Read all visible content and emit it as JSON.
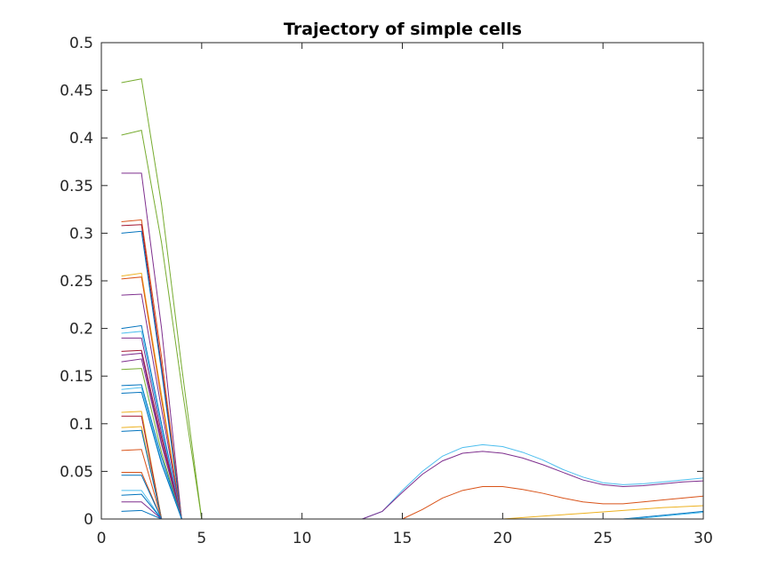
{
  "chart_data": {
    "type": "line",
    "title": "Trajectory of simple cells",
    "xlabel": "",
    "ylabel": "",
    "xlim": [
      0,
      30
    ],
    "ylim": [
      0,
      0.5
    ],
    "x_ticks": [
      0,
      5,
      10,
      15,
      20,
      25,
      30
    ],
    "x_tick_labels": [
      "0",
      "5",
      "10",
      "15",
      "20",
      "25",
      "30"
    ],
    "y_ticks": [
      0,
      0.05,
      0.1,
      0.15,
      0.2,
      0.25,
      0.3,
      0.35,
      0.4,
      0.45,
      0.5
    ],
    "y_tick_labels": [
      "0",
      "0.05",
      "0.1",
      "0.15",
      "0.2",
      "0.25",
      "0.3",
      "0.35",
      "0.4",
      "0.45",
      "0.5"
    ],
    "grid": false,
    "legend": "none",
    "series": [
      {
        "color": "#77AC30",
        "x": [
          1,
          2,
          3,
          4,
          5
        ],
        "y": [
          0.458,
          0.462,
          0.33,
          0.16,
          0
        ]
      },
      {
        "color": "#77AC30",
        "x": [
          1,
          2,
          3,
          4,
          5
        ],
        "y": [
          0.403,
          0.408,
          0.29,
          0.14,
          0
        ]
      },
      {
        "color": "#7E2F8E",
        "x": [
          1,
          2,
          3,
          4
        ],
        "y": [
          0.363,
          0.363,
          0.2,
          0
        ]
      },
      {
        "color": "#D95319",
        "x": [
          1,
          2,
          3,
          4
        ],
        "y": [
          0.312,
          0.314,
          0.17,
          0
        ]
      },
      {
        "color": "#A2142F",
        "x": [
          1,
          2,
          3,
          4
        ],
        "y": [
          0.308,
          0.309,
          0.16,
          0
        ]
      },
      {
        "color": "#0072BD",
        "x": [
          1,
          2,
          3,
          4
        ],
        "y": [
          0.3,
          0.302,
          0.155,
          0
        ]
      },
      {
        "color": "#EDB120",
        "x": [
          1,
          2,
          3,
          4
        ],
        "y": [
          0.255,
          0.258,
          0.13,
          0
        ]
      },
      {
        "color": "#D95319",
        "x": [
          1,
          2,
          3,
          4
        ],
        "y": [
          0.252,
          0.254,
          0.125,
          0
        ]
      },
      {
        "color": "#7E2F8E",
        "x": [
          1,
          2,
          3,
          4
        ],
        "y": [
          0.235,
          0.236,
          0.115,
          0
        ]
      },
      {
        "color": "#0072BD",
        "x": [
          1,
          2,
          3,
          4
        ],
        "y": [
          0.2,
          0.203,
          0.1,
          0
        ]
      },
      {
        "color": "#4DBEEE",
        "x": [
          1,
          2,
          3,
          4
        ],
        "y": [
          0.195,
          0.197,
          0.095,
          0
        ]
      },
      {
        "color": "#7E2F8E",
        "x": [
          1,
          2,
          3,
          4
        ],
        "y": [
          0.19,
          0.19,
          0.09,
          0
        ]
      },
      {
        "color": "#A2142F",
        "x": [
          1,
          2,
          3,
          4
        ],
        "y": [
          0.176,
          0.177,
          0.085,
          0
        ]
      },
      {
        "color": "#7E2F8E",
        "x": [
          1,
          2,
          3,
          4
        ],
        "y": [
          0.172,
          0.174,
          0.08,
          0
        ]
      },
      {
        "color": "#7E2F8E",
        "x": [
          1,
          2,
          3,
          4
        ],
        "y": [
          0.165,
          0.168,
          0.078,
          0
        ]
      },
      {
        "color": "#77AC30",
        "x": [
          1,
          2,
          3,
          4
        ],
        "y": [
          0.157,
          0.158,
          0.07,
          0
        ]
      },
      {
        "color": "#0072BD",
        "x": [
          1,
          2,
          3,
          4
        ],
        "y": [
          0.14,
          0.141,
          0.065,
          0
        ]
      },
      {
        "color": "#4DBEEE",
        "x": [
          1,
          2,
          3,
          4
        ],
        "y": [
          0.136,
          0.138,
          0.06,
          0
        ]
      },
      {
        "color": "#0072BD",
        "x": [
          1,
          2,
          3,
          4
        ],
        "y": [
          0.132,
          0.133,
          0.058,
          0
        ]
      },
      {
        "color": "#EDB120",
        "x": [
          1,
          2,
          3
        ],
        "y": [
          0.112,
          0.113,
          0
        ]
      },
      {
        "color": "#A2142F",
        "x": [
          1,
          2,
          3
        ],
        "y": [
          0.108,
          0.108,
          0
        ]
      },
      {
        "color": "#EDB120",
        "x": [
          1,
          2,
          3
        ],
        "y": [
          0.096,
          0.097,
          0
        ]
      },
      {
        "color": "#0072BD",
        "x": [
          1,
          2,
          3
        ],
        "y": [
          0.092,
          0.093,
          0
        ]
      },
      {
        "color": "#D95319",
        "x": [
          1,
          2,
          3
        ],
        "y": [
          0.072,
          0.073,
          0
        ]
      },
      {
        "color": "#D95319",
        "x": [
          1,
          2,
          3
        ],
        "y": [
          0.049,
          0.049,
          0
        ]
      },
      {
        "color": "#0072BD",
        "x": [
          1,
          2,
          3
        ],
        "y": [
          0.046,
          0.046,
          0
        ]
      },
      {
        "color": "#4DBEEE",
        "x": [
          1,
          2,
          3
        ],
        "y": [
          0.03,
          0.03,
          0
        ]
      },
      {
        "color": "#0072BD",
        "x": [
          1,
          2,
          3
        ],
        "y": [
          0.025,
          0.026,
          0
        ]
      },
      {
        "color": "#7E2F8E",
        "x": [
          1,
          2,
          3
        ],
        "y": [
          0.018,
          0.018,
          0
        ]
      },
      {
        "color": "#0072BD",
        "x": [
          1,
          2,
          3
        ],
        "y": [
          0.008,
          0.009,
          0
        ]
      },
      {
        "color": "#4DBEEE",
        "x": [
          1,
          2,
          3,
          4,
          5,
          10,
          13,
          14,
          15,
          16,
          17,
          18,
          19,
          20,
          21,
          22,
          23,
          24,
          25,
          26,
          27,
          28,
          29,
          30
        ],
        "y": [
          0,
          0,
          0,
          0,
          0,
          0,
          0,
          0.008,
          0.03,
          0.05,
          0.066,
          0.075,
          0.078,
          0.076,
          0.07,
          0.062,
          0.052,
          0.044,
          0.038,
          0.036,
          0.037,
          0.039,
          0.041,
          0.043
        ]
      },
      {
        "color": "#7E2F8E",
        "x": [
          5,
          10,
          13,
          14,
          15,
          16,
          17,
          18,
          19,
          20,
          21,
          22,
          23,
          24,
          25,
          26,
          27,
          28,
          29,
          30
        ],
        "y": [
          0,
          0,
          0,
          0.008,
          0.028,
          0.047,
          0.061,
          0.069,
          0.071,
          0.069,
          0.064,
          0.057,
          0.049,
          0.041,
          0.036,
          0.034,
          0.035,
          0.037,
          0.039,
          0.04
        ]
      },
      {
        "color": "#D95319",
        "x": [
          15,
          16,
          17,
          18,
          19,
          20,
          21,
          22,
          23,
          24,
          25,
          26,
          27,
          28,
          29,
          30
        ],
        "y": [
          0,
          0.01,
          0.022,
          0.03,
          0.034,
          0.034,
          0.031,
          0.027,
          0.022,
          0.018,
          0.016,
          0.016,
          0.018,
          0.02,
          0.022,
          0.024
        ]
      },
      {
        "color": "#EDB120",
        "x": [
          20,
          22,
          24,
          26,
          28,
          30
        ],
        "y": [
          0,
          0.003,
          0.006,
          0.009,
          0.012,
          0.014
        ]
      },
      {
        "color": "#0072BD",
        "x": [
          26,
          27,
          28,
          29,
          30
        ],
        "y": [
          0,
          0.002,
          0.004,
          0.006,
          0.008
        ]
      },
      {
        "color": "#4DBEEE",
        "x": [
          26,
          27,
          28,
          29,
          30
        ],
        "y": [
          0,
          0.001,
          0.003,
          0.005,
          0.007
        ]
      }
    ]
  }
}
